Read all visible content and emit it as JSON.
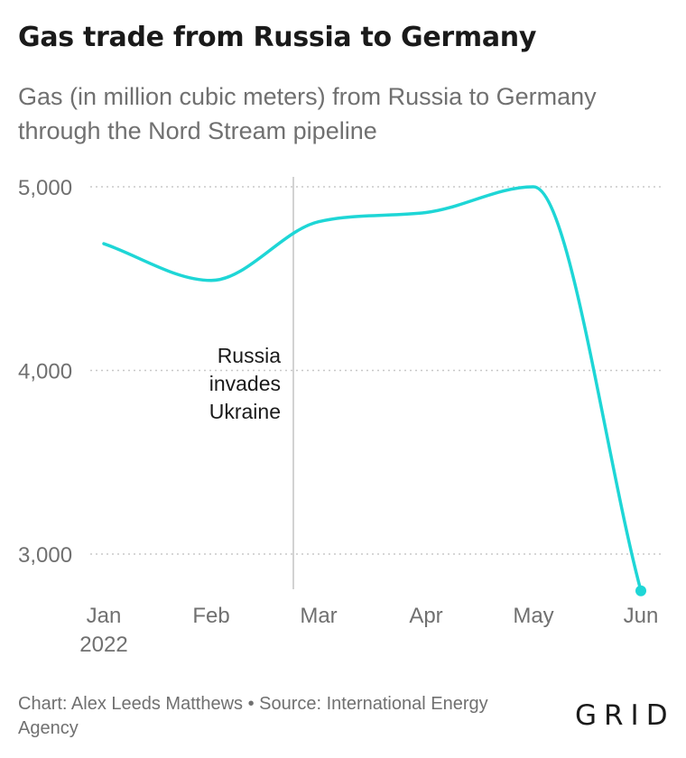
{
  "title": "Gas trade from Russia to Germany",
  "subtitle": "Gas (in million cubic meters) from Russia to Germany through the Nord Stream pipeline",
  "footer": {
    "credit": "Chart: Alex Leeds Matthews • Source: International Energy Agency",
    "logo": "GRID"
  },
  "chart_data": {
    "type": "line",
    "categories": [
      "Jan",
      "Feb",
      "Mar",
      "Apr",
      "May",
      "Jun"
    ],
    "year_label": "2022",
    "values": [
      4690,
      4490,
      4810,
      4860,
      5000,
      2800
    ],
    "ylim": [
      2800,
      5050
    ],
    "yticks": [
      3000,
      4000,
      5000
    ],
    "ytick_labels": [
      "3,000",
      "4,000",
      "5,000"
    ],
    "grid": true,
    "line_color": "#1ed6d6",
    "annotation": {
      "text_lines": [
        "Russia",
        "invades",
        "Ukraine"
      ],
      "between": [
        "Feb",
        "Mar"
      ]
    }
  }
}
